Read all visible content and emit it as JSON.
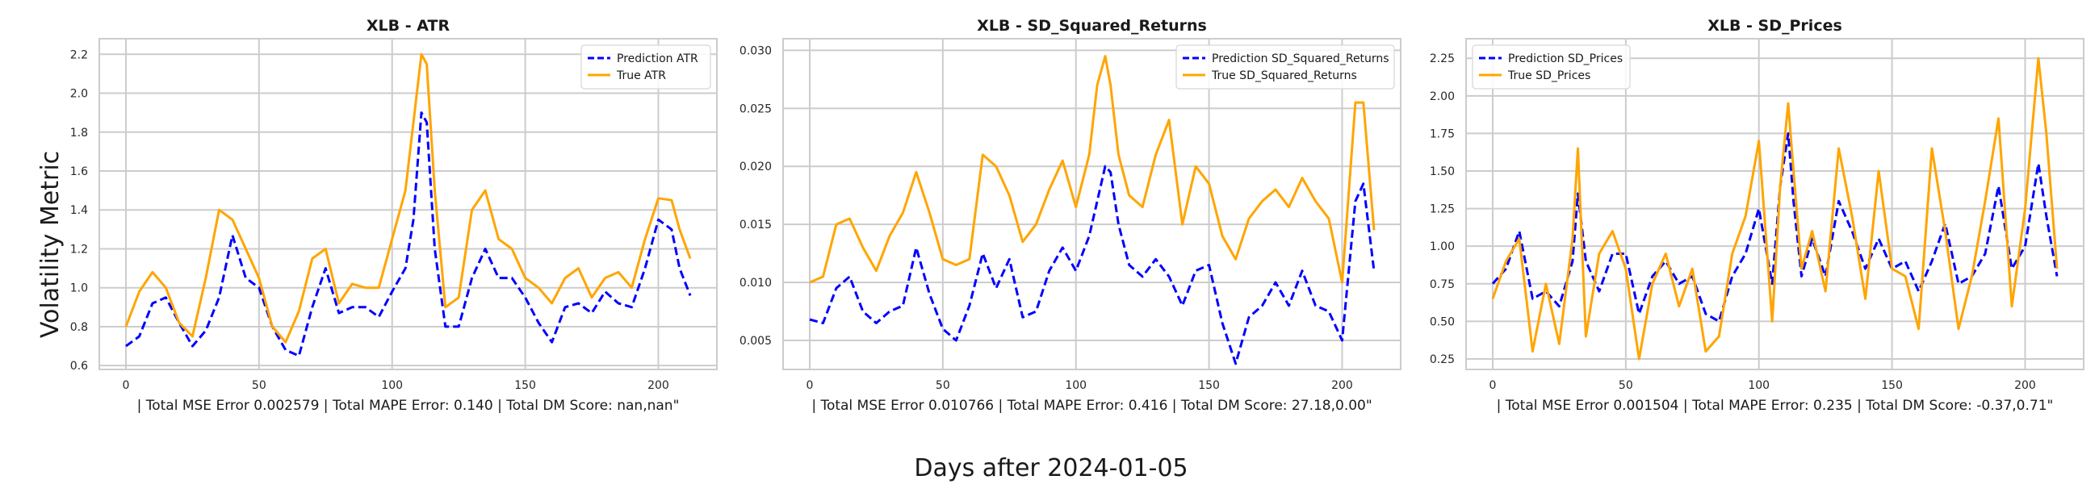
{
  "figure": {
    "supxlabel": "Days after 2024-01-05",
    "supylabel": "Volatility Metric"
  },
  "chart_data": [
    {
      "type": "line",
      "title": "XLB - ATR",
      "xlabel": "| Total MSE Error 0.002579 | Total MAPE Error: 0.140 | Total DM Score: nan,nan\"",
      "ylabel": "Volatility Metric",
      "xlim": [
        -10,
        222
      ],
      "ylim": [
        0.58,
        2.28
      ],
      "xticks": [
        0,
        50,
        100,
        150,
        200
      ],
      "yticks": [
        0.6,
        0.8,
        1.0,
        1.2,
        1.4,
        1.6,
        1.8,
        2.0,
        2.2
      ],
      "ytick_labels": [
        "0.6",
        "0.8",
        "1.0",
        "1.2",
        "1.4",
        "1.6",
        "1.8",
        "2.0",
        "2.2"
      ],
      "grid": true,
      "legend_position": "top-right",
      "series": [
        {
          "name": "Prediction ATR",
          "color": "#0000ff",
          "style": "dashed",
          "x": [
            0,
            5,
            10,
            15,
            20,
            25,
            30,
            35,
            40,
            45,
            50,
            55,
            60,
            65,
            70,
            75,
            80,
            85,
            90,
            95,
            100,
            105,
            108,
            111,
            113,
            116,
            120,
            125,
            130,
            135,
            140,
            145,
            150,
            155,
            160,
            165,
            170,
            175,
            180,
            185,
            190,
            195,
            200,
            205,
            208,
            212
          ],
          "values": [
            0.7,
            0.75,
            0.92,
            0.95,
            0.82,
            0.7,
            0.78,
            0.95,
            1.27,
            1.05,
            1.0,
            0.8,
            0.68,
            0.65,
            0.9,
            1.1,
            0.87,
            0.9,
            0.9,
            0.85,
            0.98,
            1.1,
            1.35,
            1.9,
            1.85,
            1.2,
            0.8,
            0.8,
            1.05,
            1.2,
            1.05,
            1.05,
            0.95,
            0.82,
            0.72,
            0.9,
            0.92,
            0.87,
            0.98,
            0.92,
            0.9,
            1.1,
            1.35,
            1.3,
            1.1,
            0.96
          ]
        },
        {
          "name": "True ATR",
          "color": "#ffa500",
          "style": "solid",
          "x": [
            0,
            5,
            10,
            15,
            20,
            25,
            30,
            35,
            40,
            45,
            50,
            55,
            60,
            65,
            70,
            75,
            80,
            85,
            90,
            95,
            100,
            105,
            108,
            111,
            113,
            116,
            120,
            125,
            130,
            135,
            140,
            145,
            150,
            155,
            160,
            165,
            170,
            175,
            180,
            185,
            190,
            195,
            200,
            205,
            208,
            212
          ],
          "values": [
            0.8,
            0.98,
            1.08,
            1.0,
            0.82,
            0.75,
            1.05,
            1.4,
            1.35,
            1.2,
            1.05,
            0.8,
            0.72,
            0.88,
            1.15,
            1.2,
            0.92,
            1.02,
            1.0,
            1.0,
            1.25,
            1.5,
            1.85,
            2.2,
            2.15,
            1.5,
            0.9,
            0.95,
            1.4,
            1.5,
            1.25,
            1.2,
            1.05,
            1.0,
            0.92,
            1.05,
            1.1,
            0.95,
            1.05,
            1.08,
            1.0,
            1.25,
            1.46,
            1.45,
            1.3,
            1.15
          ]
        }
      ]
    },
    {
      "type": "line",
      "title": "XLB - SD_Squared_Returns",
      "xlabel": "| Total MSE Error 0.010766 | Total MAPE Error: 0.416 | Total DM Score: 27.18,0.00\"",
      "ylabel": "",
      "xlim": [
        -10,
        222
      ],
      "ylim": [
        0.0025,
        0.031
      ],
      "xticks": [
        0,
        50,
        100,
        150,
        200
      ],
      "yticks": [
        0.005,
        0.01,
        0.015,
        0.02,
        0.025,
        0.03
      ],
      "ytick_labels": [
        "0.005",
        "0.010",
        "0.015",
        "0.020",
        "0.025",
        "0.030"
      ],
      "grid": true,
      "legend_position": "top-right",
      "series": [
        {
          "name": "Prediction SD_Squared_Returns",
          "color": "#0000ff",
          "style": "dashed",
          "x": [
            0,
            5,
            10,
            15,
            20,
            25,
            30,
            35,
            40,
            45,
            50,
            55,
            60,
            65,
            70,
            75,
            80,
            85,
            90,
            95,
            100,
            105,
            108,
            111,
            113,
            116,
            120,
            125,
            130,
            135,
            140,
            145,
            150,
            155,
            160,
            165,
            170,
            175,
            180,
            185,
            190,
            195,
            200,
            205,
            208,
            212
          ],
          "values": [
            0.0068,
            0.0065,
            0.0095,
            0.0105,
            0.0075,
            0.0065,
            0.0075,
            0.008,
            0.013,
            0.009,
            0.006,
            0.005,
            0.008,
            0.0125,
            0.0095,
            0.012,
            0.007,
            0.0075,
            0.011,
            0.013,
            0.011,
            0.014,
            0.017,
            0.02,
            0.0195,
            0.015,
            0.0115,
            0.0105,
            0.012,
            0.0105,
            0.008,
            0.011,
            0.0115,
            0.0065,
            0.003,
            0.007,
            0.008,
            0.01,
            0.008,
            0.011,
            0.008,
            0.0075,
            0.005,
            0.017,
            0.0185,
            0.011
          ]
        },
        {
          "name": "True SD_Squared_Returns",
          "color": "#ffa500",
          "style": "solid",
          "x": [
            0,
            5,
            10,
            15,
            20,
            25,
            30,
            35,
            40,
            45,
            50,
            55,
            60,
            65,
            70,
            75,
            80,
            85,
            90,
            95,
            100,
            105,
            108,
            111,
            113,
            116,
            120,
            125,
            130,
            135,
            140,
            145,
            150,
            155,
            160,
            165,
            170,
            175,
            180,
            185,
            190,
            195,
            200,
            205,
            208,
            212
          ],
          "values": [
            0.01,
            0.0105,
            0.015,
            0.0155,
            0.013,
            0.011,
            0.014,
            0.016,
            0.0195,
            0.016,
            0.012,
            0.0115,
            0.012,
            0.021,
            0.02,
            0.0175,
            0.0135,
            0.015,
            0.018,
            0.0205,
            0.0165,
            0.021,
            0.027,
            0.0295,
            0.027,
            0.021,
            0.0175,
            0.0165,
            0.021,
            0.024,
            0.015,
            0.02,
            0.0185,
            0.014,
            0.012,
            0.0155,
            0.017,
            0.018,
            0.0165,
            0.019,
            0.017,
            0.0155,
            0.01,
            0.0255,
            0.0255,
            0.0145
          ]
        },
        {
          "name": "",
          "color": "",
          "style": "",
          "x": [],
          "values": []
        }
      ]
    },
    {
      "type": "line",
      "title": "XLB - SD_Prices",
      "xlabel": "| Total MSE Error 0.001504 | Total MAPE Error: 0.235 | Total DM Score: -0.37,0.71\"",
      "ylabel": "",
      "xlim": [
        -10,
        222
      ],
      "ylim": [
        0.18,
        2.38
      ],
      "xticks": [
        0,
        50,
        100,
        150,
        200
      ],
      "yticks": [
        0.25,
        0.5,
        0.75,
        1.0,
        1.25,
        1.5,
        1.75,
        2.0,
        2.25
      ],
      "ytick_labels": [
        "0.25",
        "0.50",
        "0.75",
        "1.00",
        "1.25",
        "1.50",
        "1.75",
        "2.00",
        "2.25"
      ],
      "grid": true,
      "legend_position": "top-left",
      "series": [
        {
          "name": "Prediction SD_Prices",
          "color": "#0000ff",
          "style": "dashed",
          "x": [
            0,
            5,
            10,
            15,
            20,
            25,
            30,
            32,
            35,
            40,
            45,
            50,
            55,
            60,
            65,
            70,
            75,
            80,
            85,
            90,
            95,
            100,
            105,
            108,
            111,
            113,
            116,
            120,
            125,
            130,
            135,
            140,
            145,
            150,
            155,
            160,
            165,
            170,
            175,
            180,
            185,
            190,
            195,
            200,
            205,
            208,
            212
          ],
          "values": [
            0.75,
            0.85,
            1.1,
            0.65,
            0.7,
            0.6,
            0.9,
            1.35,
            0.9,
            0.7,
            0.95,
            0.95,
            0.55,
            0.8,
            0.9,
            0.75,
            0.8,
            0.55,
            0.5,
            0.8,
            0.95,
            1.25,
            0.75,
            1.4,
            1.75,
            1.3,
            0.8,
            1.05,
            0.8,
            1.3,
            1.1,
            0.85,
            1.05,
            0.85,
            0.9,
            0.7,
            0.9,
            1.15,
            0.75,
            0.8,
            0.95,
            1.4,
            0.85,
            1.0,
            1.55,
            1.2,
            0.8
          ]
        },
        {
          "name": "True SD_Prices",
          "color": "#ffa500",
          "style": "solid",
          "x": [
            0,
            5,
            10,
            15,
            20,
            25,
            30,
            32,
            35,
            40,
            45,
            50,
            55,
            60,
            65,
            70,
            75,
            80,
            85,
            90,
            95,
            100,
            105,
            108,
            111,
            113,
            116,
            120,
            125,
            130,
            135,
            140,
            145,
            150,
            155,
            160,
            165,
            170,
            175,
            180,
            185,
            190,
            195,
            200,
            205,
            208,
            212
          ],
          "values": [
            0.65,
            0.9,
            1.05,
            0.3,
            0.75,
            0.35,
            1.05,
            1.65,
            0.4,
            0.95,
            1.1,
            0.85,
            0.25,
            0.75,
            0.95,
            0.6,
            0.85,
            0.3,
            0.4,
            0.95,
            1.2,
            1.7,
            0.5,
            1.4,
            1.95,
            1.5,
            0.85,
            1.1,
            0.7,
            1.65,
            1.2,
            0.65,
            1.5,
            0.85,
            0.8,
            0.45,
            1.65,
            1.1,
            0.45,
            0.8,
            1.3,
            1.85,
            0.6,
            1.25,
            2.25,
            1.75,
            0.85
          ]
        }
      ]
    }
  ]
}
